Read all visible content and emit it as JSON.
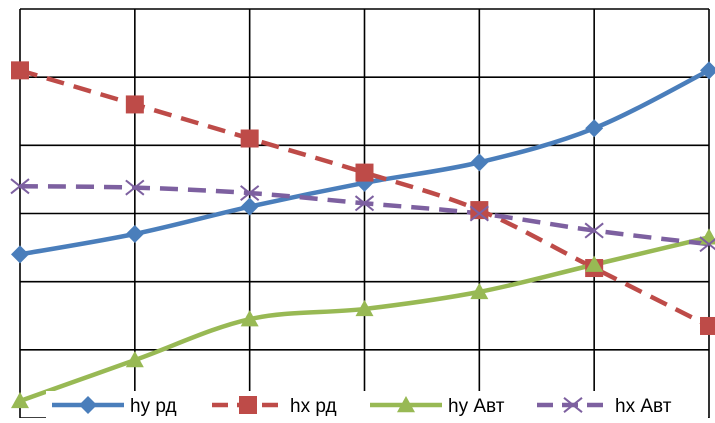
{
  "chart_data": {
    "type": "line",
    "title": "",
    "xlabel": "",
    "ylabel": "",
    "x": [
      0,
      1,
      2,
      3,
      4,
      5,
      6
    ],
    "xlim": [
      0,
      6
    ],
    "ylim": [
      0,
      6
    ],
    "grid": true,
    "legend_position": "bottom",
    "smooth": true,
    "series": [
      {
        "name": "hy рд",
        "color": "#4a7ebb",
        "dash": "solid",
        "marker": "diamond",
        "values": [
          2.4,
          2.7,
          3.1,
          3.45,
          3.75,
          4.25,
          5.1
        ]
      },
      {
        "name": "hx рд",
        "color": "#be4b48",
        "dash": "dashed",
        "marker": "square",
        "values": [
          5.1,
          4.6,
          4.1,
          3.6,
          3.05,
          2.2,
          1.35
        ]
      },
      {
        "name": "hy Авт",
        "color": "#98b954",
        "dash": "solid",
        "marker": "triangle",
        "values": [
          0.25,
          0.85,
          1.45,
          1.6,
          1.85,
          2.25,
          2.65
        ]
      },
      {
        "name": "hx Авт",
        "color": "#7d60a0",
        "dash": "dashed",
        "marker": "x",
        "values": [
          3.4,
          3.38,
          3.3,
          3.15,
          3.0,
          2.75,
          2.55
        ]
      }
    ]
  }
}
